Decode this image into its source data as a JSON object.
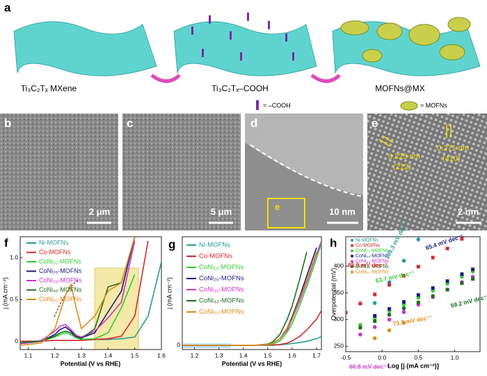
{
  "figure": {
    "a": {
      "label": "a",
      "captions": [
        "Ti₃C₂Tₓ MXene",
        "Ti₃C₂Tₓ–COOH",
        "MOFNs@MX"
      ],
      "legend": [
        "= –COOH",
        "= MOFNs"
      ]
    },
    "b": {
      "label": "b",
      "scale": "2 μm"
    },
    "c": {
      "label": "c",
      "scale": "5 μm"
    },
    "d": {
      "label": "d",
      "scale": "10 nm",
      "box": "e"
    },
    "e": {
      "label": "e",
      "scale": "2 nm",
      "spacings": [
        "0.225 nm",
        "(212)",
        "0.271 nm",
        "(410)"
      ]
    }
  },
  "chart_data": [
    {
      "type": "line",
      "label": "f",
      "x_label": "Potential (V vs RHE)",
      "y_label": "j (mA cm⁻²)",
      "x": [
        1.07,
        1.1,
        1.15,
        1.2,
        1.22,
        1.24,
        1.26,
        1.28,
        1.3,
        1.35,
        1.4,
        1.45,
        1.5,
        1.55,
        1.6
      ],
      "xlim": [
        1.07,
        1.6
      ],
      "xticks": [
        1.1,
        1.2,
        1.3,
        1.4,
        1.5,
        1.6
      ],
      "ylim": [
        -0.1,
        1.25
      ],
      "yticks": [
        0,
        0.5,
        {
          "value": 1,
          "label": "1.0"
        }
      ],
      "series": [
        {
          "name": "Ni-MOFNs",
          "color": "#2a9a9a",
          "values": [
            0,
            0,
            0,
            0.01,
            0.01,
            0.01,
            0.01,
            0.01,
            0.01,
            0.02,
            0.02,
            0.03,
            0.05,
            0.3,
            0.95
          ]
        },
        {
          "name": "Co-MOFNs",
          "color": "#d42a2a",
          "values": [
            0,
            0,
            0,
            0.01,
            0.01,
            0.01,
            0.01,
            0.01,
            0.01,
            0.02,
            0.03,
            0.06,
            0.3,
            1.2,
            null
          ]
        },
        {
          "name": "CoNi₁₀-MOFNs",
          "color": "#33cc33",
          "values": [
            -0.02,
            -0.01,
            0,
            0.05,
            0.08,
            0.1,
            0.08,
            0.04,
            0.02,
            0.03,
            0.1,
            0.4,
            0.8,
            null,
            null
          ]
        },
        {
          "name": "CoNi₂₀-MOFNs",
          "color": "#1a1a80",
          "values": [
            -0.03,
            -0.02,
            0,
            0.08,
            0.14,
            0.17,
            0.12,
            0.06,
            0.04,
            0.1,
            0.35,
            0.6,
            1.25,
            null,
            null
          ]
        },
        {
          "name": "CoNi₃₀-MOFNs",
          "color": "#cc33cc",
          "values": [
            -0.03,
            -0.02,
            0.01,
            0.12,
            0.18,
            0.2,
            0.14,
            0.07,
            0.05,
            0.12,
            0.28,
            0.47,
            1.2,
            null,
            null
          ]
        },
        {
          "name": "CoNi₄₀-MOFNs",
          "color": "#1e6e1e",
          "values": [
            -0.02,
            -0.01,
            0,
            0.06,
            0.1,
            0.12,
            0.1,
            0.05,
            0.03,
            0.15,
            0.65,
            0.7,
            1.25,
            null,
            null
          ]
        },
        {
          "name": "CoNi₅₀-MOFNs",
          "color": "#e08a1a",
          "values": [
            -0.05,
            -0.04,
            -0.02,
            0.15,
            0.35,
            0.55,
            0.68,
            0.4,
            0.15,
            0.3,
            0.6,
            0.7,
            1.25,
            null,
            null
          ]
        }
      ]
    },
    {
      "type": "line",
      "label": "g",
      "x_label": "Potential (V vs RHE)",
      "y_label": "j (mA cm⁻²)",
      "x": [
        1.15,
        1.3,
        1.45,
        1.5,
        1.52,
        1.55,
        1.58,
        1.6,
        1.63,
        1.66,
        1.7,
        1.72
      ],
      "xlim": [
        1.15,
        1.72
      ],
      "xticks": [
        1.2,
        1.3,
        1.4,
        1.5,
        1.6,
        1.7
      ],
      "ylim": [
        -2,
        50
      ],
      "yticks": [
        0
      ],
      "series": [
        {
          "name": "Ni-MOFNs",
          "color": "#2a9a9a",
          "values": [
            0,
            0,
            0,
            0,
            0,
            0.2,
            0.5,
            0.8,
            1.2,
            1.8,
            3,
            4
          ]
        },
        {
          "name": "Co-MOFNs",
          "color": "#d42a2a",
          "values": [
            0,
            0,
            0,
            0,
            0.1,
            0.3,
            1,
            2,
            4,
            7,
            12,
            16
          ]
        },
        {
          "name": "CoNi₁₀-MOFNs",
          "color": "#33cc33",
          "values": [
            0,
            0,
            0,
            0.2,
            0.5,
            2,
            6,
            10,
            18,
            27,
            40,
            47
          ]
        },
        {
          "name": "CoNi₂₀-MOFNs",
          "color": "#1a1a80",
          "values": [
            0,
            0,
            0,
            0.3,
            1,
            3,
            8,
            13,
            22,
            32,
            45,
            null
          ]
        },
        {
          "name": "CoNi₃₀-MOFNs",
          "color": "#cc33cc",
          "values": [
            0,
            0,
            0,
            0.3,
            1,
            3,
            7,
            12,
            20,
            29,
            42,
            48
          ]
        },
        {
          "name": "CoNi₄₀-MOFNs",
          "color": "#1e6e1e",
          "values": [
            0,
            0,
            0,
            0.5,
            1.5,
            5,
            12,
            18,
            30,
            43,
            null,
            null
          ]
        },
        {
          "name": "CoNi₅₀-MOFNs",
          "color": "#e08a1a",
          "values": [
            0,
            0,
            0,
            0.3,
            1,
            3,
            8,
            12,
            21,
            30,
            43,
            null
          ]
        }
      ]
    },
    {
      "type": "scatter",
      "label": "h",
      "x_label": "Log [j (mA cm⁻²)]",
      "y_label": "Overpotential (mV)",
      "x": [
        -0.5,
        -0.3,
        -0.1,
        0.1,
        0.3,
        0.5,
        0.7,
        0.9,
        1.1,
        1.25
      ],
      "xlim": [
        -0.5,
        1.35
      ],
      "xticks": [
        -0.5,
        {
          "value": 0,
          "label": "0.0"
        },
        0.5,
        {
          "value": 1,
          "label": "1.0"
        }
      ],
      "ylim": [
        240,
        455
      ],
      "yticks": [
        250,
        300,
        350,
        400
      ],
      "series": [
        {
          "name": "Ni-MOFNs",
          "color": "#2a9a9a",
          "values": [
            null,
            null,
            331,
            370,
            410,
            450,
            null,
            null,
            null,
            null
          ]
        },
        {
          "name": "Co-MOFNs",
          "color": "#d42a2a",
          "values": [
            313,
            330,
            347,
            365,
            382,
            399,
            416,
            433,
            451,
            null
          ]
        },
        {
          "name": "CoNi₁₀-MOFNs",
          "color": "#33cc33",
          "values": [
            null,
            290,
            303,
            316,
            328,
            341,
            354,
            367,
            380,
            390
          ]
        },
        {
          "name": "CoNi₂₀-MOFNs",
          "color": "#1a1a80",
          "values": [
            null,
            null,
            307,
            320,
            333,
            346,
            359,
            372,
            385,
            394
          ]
        },
        {
          "name": "CoNi₃₀-MOFNs",
          "color": "#cc33cc",
          "values": [
            null,
            272,
            286,
            300,
            314,
            328,
            342,
            356,
            370,
            380
          ]
        },
        {
          "name": "CoNi₄₀-MOFNs",
          "color": "#1e6e1e",
          "values": [
            null,
            285,
            297,
            309,
            321,
            332,
            344,
            356,
            368,
            376
          ]
        },
        {
          "name": "CoNi₅₀-MOFNs",
          "color": "#e08a1a",
          "values": [
            null,
            null,
            265,
            280,
            294,
            null,
            null,
            null,
            null,
            null
          ]
        }
      ],
      "annotations": [
        {
          "text": "85.9 mV dec⁻¹",
          "color": "#d42a2a"
        },
        {
          "text": "199.3 mV dec⁻¹",
          "color": "#2a9a9a"
        },
        {
          "text": "65.4 mV dec⁻¹",
          "color": "#1a1a80"
        },
        {
          "text": "63.7 mV dec⁻¹",
          "color": "#33cc33"
        },
        {
          "text": "59.2 mV dec⁻¹",
          "color": "#1e6e1e"
        },
        {
          "text": "73.3 mV dec⁻¹",
          "color": "#e08a1a"
        },
        {
          "text": "66.8 mV dec⁻¹",
          "color": "#cc33cc"
        }
      ]
    }
  ]
}
